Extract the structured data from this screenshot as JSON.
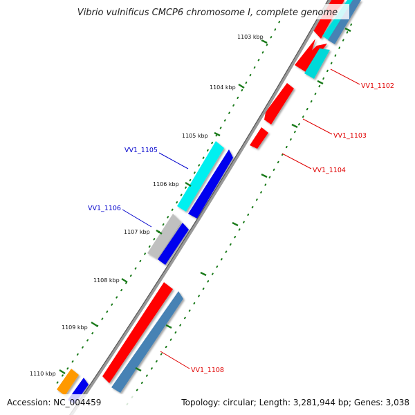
{
  "title": "Vibrio vulnificus CMCP6 chromosome I, complete genome",
  "footer": {
    "accession": "Accession: NC_004459",
    "topology": "Topology: circular; Length: 3,281,944 bp; Genes: 3,038"
  },
  "ticks": [
    "1103 kbp",
    "1104 kbp",
    "1105 kbp",
    "1106 kbp",
    "1107 kbp",
    "1108 kbp",
    "1109 kbp",
    "1110 kbp"
  ],
  "gene_labels": [
    {
      "text": "VV1_1102",
      "color": "#e00000"
    },
    {
      "text": "VV1_1103",
      "color": "#e00000"
    },
    {
      "text": "VV1_1104",
      "color": "#e00000"
    },
    {
      "text": "VV1_1105",
      "color": "#0000cc"
    },
    {
      "text": "VV1_1106",
      "color": "#0000cc"
    },
    {
      "text": "VV1_1108",
      "color": "#e00000"
    }
  ],
  "colors": {
    "red": "#ff0000",
    "cyan": "#00e5e5",
    "blue": "#0000ee",
    "steelblue": "#4682b4",
    "gray": "#bfbfbf",
    "orange": "#ff9900",
    "backbone": "#888888",
    "tick_green": "#1a7a1a"
  }
}
